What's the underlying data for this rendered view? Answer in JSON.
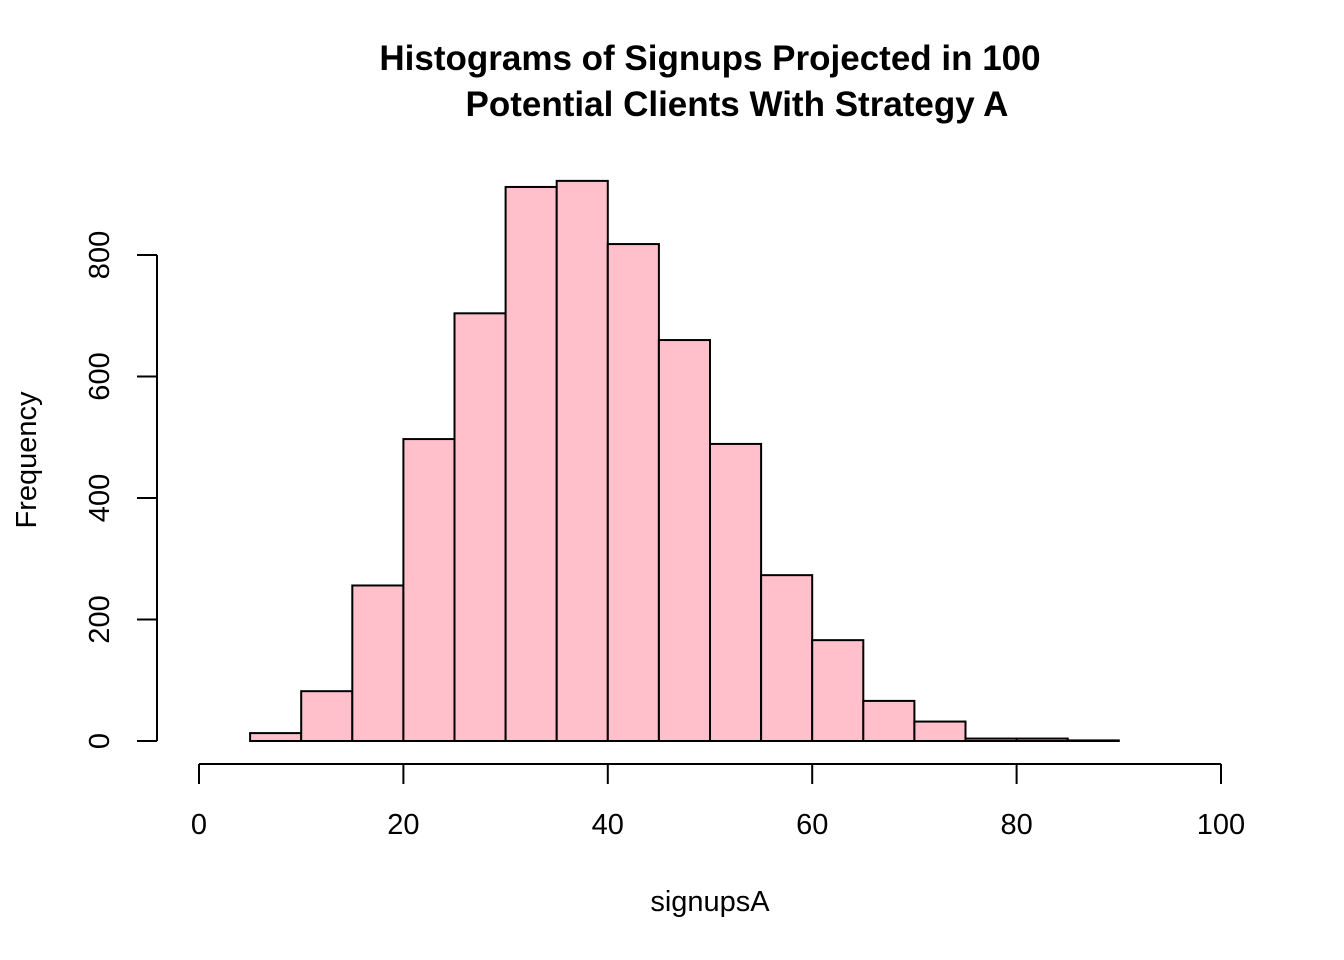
{
  "chart_data": {
    "type": "bar",
    "title_lines": [
      "Histograms of Signups Projected in 100",
      "Potential Clients With Strategy A"
    ],
    "xlabel": "signupsA",
    "ylabel": "Frequency",
    "xlim": [
      0,
      100
    ],
    "ylim": [
      0,
      800
    ],
    "x_ticks": [
      0,
      20,
      40,
      60,
      80,
      100
    ],
    "y_ticks": [
      0,
      200,
      400,
      600,
      800
    ],
    "bin_edges": [
      5,
      10,
      15,
      20,
      25,
      30,
      35,
      40,
      45,
      50,
      55,
      60,
      65,
      70,
      75,
      80,
      85,
      90
    ],
    "values": [
      13,
      82,
      256,
      497,
      704,
      912,
      922,
      818,
      660,
      489,
      273,
      166,
      66,
      32,
      4,
      4,
      1
    ],
    "grid": false,
    "legend": "none",
    "bar_color": "#FFC0CB"
  }
}
